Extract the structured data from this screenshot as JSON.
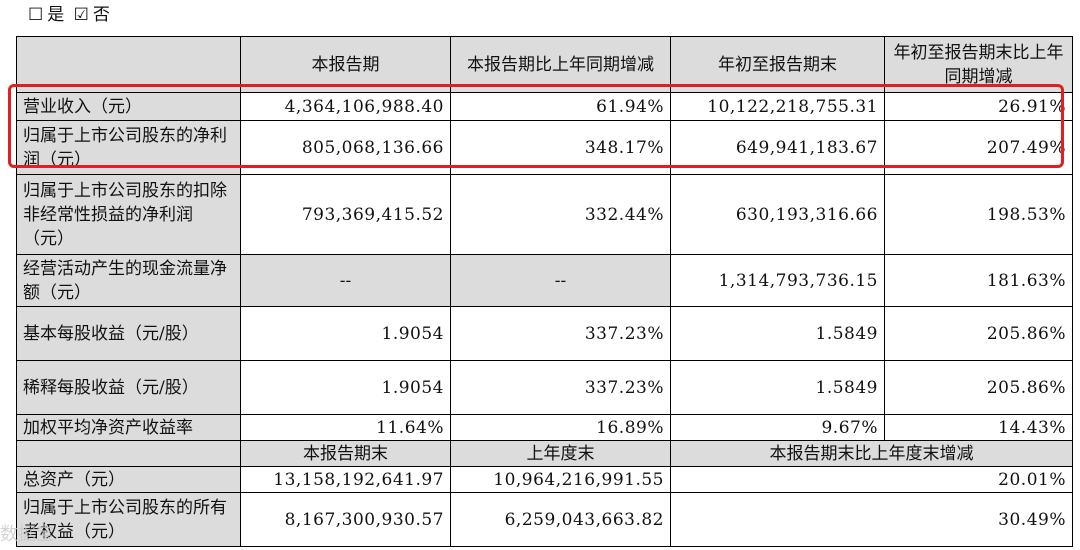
{
  "options": [
    {
      "box": "☐",
      "label": "是"
    },
    {
      "box": "☑",
      "label": "否"
    }
  ],
  "header1": [
    "本报告期",
    "本报告期比上年同期增减",
    "年初至报告期末",
    "年初至报告期末比上年同期增减"
  ],
  "rows": [
    {
      "label": "营业收入（元）",
      "values": [
        "4,364,106,988.40",
        "61.94%",
        "10,122,218,755.31",
        "26.91%"
      ]
    },
    {
      "label": "归属于上市公司股东的净利润（元）",
      "values": [
        "805,068,136.66",
        "348.17%",
        "649,941,183.67",
        "207.49%"
      ]
    },
    {
      "label": "归属于上市公司股东的扣除非经常性损益的净利润（元）",
      "values": [
        "793,369,415.52",
        "332.44%",
        "630,193,316.66",
        "198.53%"
      ]
    },
    {
      "label": "经营活动产生的现金流量净额（元）",
      "values": [
        "--",
        "--",
        "1,314,793,736.15",
        "181.63%"
      ]
    },
    {
      "label": "基本每股收益（元/股）",
      "values": [
        "1.9054",
        "337.23%",
        "1.5849",
        "205.86%"
      ]
    },
    {
      "label": "稀释每股收益（元/股）",
      "values": [
        "1.9054",
        "337.23%",
        "1.5849",
        "205.86%"
      ]
    },
    {
      "label": "加权平均净资产收益率",
      "values": [
        "11.64%",
        "16.89%",
        "9.67%",
        "14.43%"
      ]
    }
  ],
  "header2": [
    "本报告期末",
    "上年度末",
    "本报告期末比上年度末增减"
  ],
  "rows2": [
    {
      "label": "总资产（元）",
      "values": [
        "13,158,192,641.97",
        "10,964,216,991.55",
        "20.01%"
      ]
    },
    {
      "label": "归属于上市公司股东的所有者权益（元）",
      "values": [
        "8,167,300,930.57",
        "6,259,043,663.82",
        "30.49%"
      ]
    }
  ],
  "watermark": "数据宝"
}
